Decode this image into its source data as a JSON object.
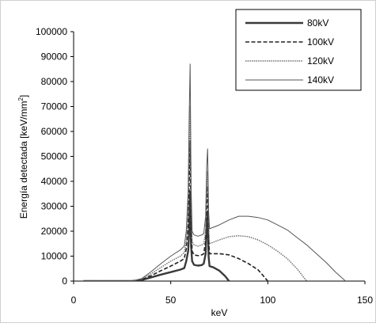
{
  "chart_data": {
    "type": "line",
    "title": "",
    "xlabel": "keV",
    "ylabel": "Energía detectada [keV/mm",
    "ylabel_superscript": "2",
    "ylabel_suffix": "]",
    "xlim": [
      0,
      150
    ],
    "ylim": [
      0,
      100000
    ],
    "x_ticks": [
      0,
      50,
      100,
      150
    ],
    "x_tick_labels": [
      "0",
      "50",
      "100",
      "150"
    ],
    "y_ticks": [
      0,
      10000,
      20000,
      30000,
      40000,
      50000,
      60000,
      70000,
      80000,
      90000,
      100000
    ],
    "y_tick_labels": [
      "0",
      "10000",
      "20000",
      "30000",
      "40000",
      "50000",
      "60000",
      "70000",
      "80000",
      "90000",
      "100000"
    ],
    "grid": false,
    "legend_position": "top-right",
    "series": [
      {
        "name": "80kV",
        "style": "solid-thick",
        "color": "#3a3a3a",
        "points": [
          [
            5,
            0
          ],
          [
            30,
            0
          ],
          [
            35,
            400
          ],
          [
            40,
            1500
          ],
          [
            45,
            2600
          ],
          [
            50,
            3600
          ],
          [
            55,
            4600
          ],
          [
            57,
            5200
          ],
          [
            58,
            8000
          ],
          [
            59,
            12000
          ],
          [
            59.5,
            20000
          ],
          [
            60,
            36000
          ],
          [
            60.5,
            14000
          ],
          [
            61,
            8000
          ],
          [
            62,
            6500
          ],
          [
            64,
            6200
          ],
          [
            66,
            6400
          ],
          [
            67,
            7000
          ],
          [
            68,
            11000
          ],
          [
            68.5,
            22000
          ],
          [
            69,
            28000
          ],
          [
            69.5,
            10000
          ],
          [
            70,
            6000
          ],
          [
            72,
            5500
          ],
          [
            75,
            4200
          ],
          [
            78,
            2000
          ],
          [
            80,
            0
          ]
        ]
      },
      {
        "name": "100kV",
        "style": "dashed",
        "color": "#222222",
        "points": [
          [
            5,
            0
          ],
          [
            30,
            0
          ],
          [
            35,
            600
          ],
          [
            40,
            2200
          ],
          [
            45,
            4200
          ],
          [
            50,
            6000
          ],
          [
            55,
            8000
          ],
          [
            57,
            9000
          ],
          [
            58,
            13000
          ],
          [
            59,
            22000
          ],
          [
            59.5,
            40000
          ],
          [
            60,
            56000
          ],
          [
            60.5,
            22000
          ],
          [
            61,
            12000
          ],
          [
            62,
            10500
          ],
          [
            64,
            10200
          ],
          [
            66,
            10500
          ],
          [
            67,
            11000
          ],
          [
            68,
            16000
          ],
          [
            68.5,
            30000
          ],
          [
            69,
            38000
          ],
          [
            69.5,
            16000
          ],
          [
            70,
            11000
          ],
          [
            75,
            11000
          ],
          [
            80,
            10500
          ],
          [
            85,
            9000
          ],
          [
            90,
            7000
          ],
          [
            95,
            4500
          ],
          [
            100,
            0
          ]
        ]
      },
      {
        "name": "120kV",
        "style": "dotted",
        "color": "#6a6a6a",
        "points": [
          [
            5,
            0
          ],
          [
            30,
            0
          ],
          [
            35,
            800
          ],
          [
            40,
            3000
          ],
          [
            45,
            5500
          ],
          [
            50,
            8000
          ],
          [
            55,
            10000
          ],
          [
            57,
            11500
          ],
          [
            58,
            16000
          ],
          [
            59,
            28000
          ],
          [
            59.5,
            52000
          ],
          [
            60,
            70000
          ],
          [
            60.5,
            30000
          ],
          [
            61,
            16000
          ],
          [
            62,
            14500
          ],
          [
            64,
            14000
          ],
          [
            66,
            14500
          ],
          [
            67,
            15000
          ],
          [
            68,
            20000
          ],
          [
            68.5,
            36000
          ],
          [
            69,
            44000
          ],
          [
            69.5,
            22000
          ],
          [
            70,
            15000
          ],
          [
            75,
            16500
          ],
          [
            80,
            17800
          ],
          [
            85,
            18200
          ],
          [
            90,
            17800
          ],
          [
            95,
            16500
          ],
          [
            100,
            14500
          ],
          [
            105,
            12000
          ],
          [
            110,
            9000
          ],
          [
            115,
            5000
          ],
          [
            120,
            0
          ]
        ]
      },
      {
        "name": "140kV",
        "style": "solid-thin",
        "color": "#555555",
        "points": [
          [
            5,
            0
          ],
          [
            30,
            0
          ],
          [
            35,
            1000
          ],
          [
            40,
            3800
          ],
          [
            45,
            7000
          ],
          [
            50,
            10000
          ],
          [
            55,
            12500
          ],
          [
            57,
            14000
          ],
          [
            58,
            20000
          ],
          [
            59,
            36000
          ],
          [
            59.5,
            66000
          ],
          [
            60,
            87000
          ],
          [
            60.5,
            38000
          ],
          [
            61,
            20000
          ],
          [
            62,
            18500
          ],
          [
            64,
            18000
          ],
          [
            66,
            18500
          ],
          [
            67,
            19000
          ],
          [
            68,
            26000
          ],
          [
            68.5,
            46000
          ],
          [
            69,
            53000
          ],
          [
            69.5,
            28000
          ],
          [
            70,
            21000
          ],
          [
            75,
            22500
          ],
          [
            80,
            24500
          ],
          [
            85,
            26000
          ],
          [
            90,
            26000
          ],
          [
            95,
            25500
          ],
          [
            100,
            24500
          ],
          [
            105,
            22500
          ],
          [
            110,
            20500
          ],
          [
            115,
            17500
          ],
          [
            120,
            14500
          ],
          [
            125,
            11000
          ],
          [
            130,
            7500
          ],
          [
            135,
            3500
          ],
          [
            140,
            0
          ]
        ]
      }
    ]
  }
}
